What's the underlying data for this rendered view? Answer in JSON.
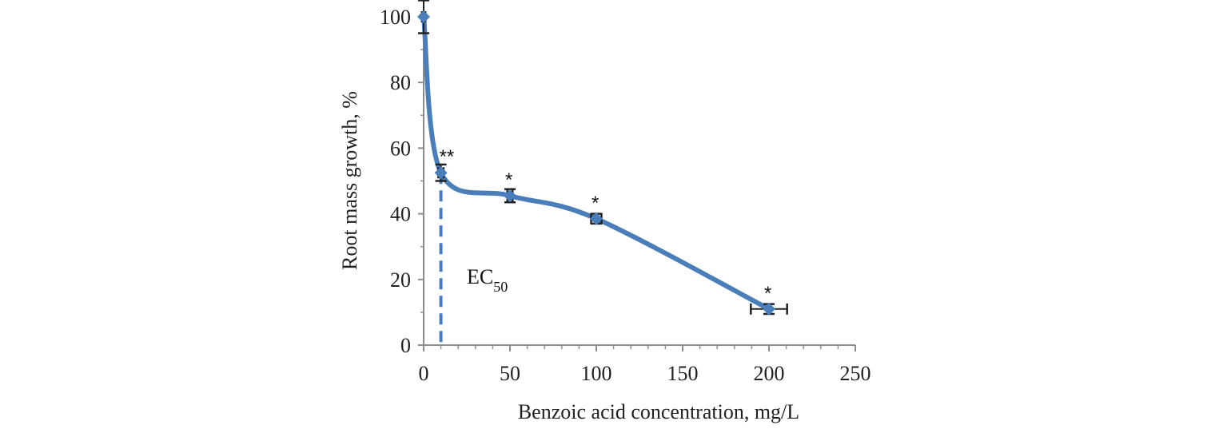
{
  "chart_data": {
    "type": "line",
    "title": "",
    "xlabel": "Benzoic acid concentration, mg/L",
    "ylabel": "Root mass growth, %",
    "xlim": [
      0,
      250
    ],
    "ylim": [
      0,
      100
    ],
    "x_ticks": [
      "0",
      "50",
      "100",
      "150",
      "200",
      "250"
    ],
    "y_ticks": [
      "0",
      "20",
      "40",
      "60",
      "80",
      "100"
    ],
    "grid": false,
    "series_color": "#4a7ebb",
    "points": [
      {
        "x": 0,
        "y": 100,
        "x_err": 1,
        "y_err": 5,
        "sig": ""
      },
      {
        "x": 10,
        "y": 52.5,
        "x_err": 1.5,
        "y_err": 2.5,
        "sig": "**"
      },
      {
        "x": 50,
        "y": 45.5,
        "x_err": 1.5,
        "y_err": 2,
        "sig": "*"
      },
      {
        "x": 100,
        "y": 38.5,
        "x_err": 3,
        "y_err": 1.5,
        "sig": "*"
      },
      {
        "x": 200,
        "y": 11,
        "x_err": 10.5,
        "y_err": 1.5,
        "sig": "*"
      }
    ],
    "ec50": {
      "x": 10,
      "label_main": "EC",
      "label_sub": "50"
    }
  }
}
